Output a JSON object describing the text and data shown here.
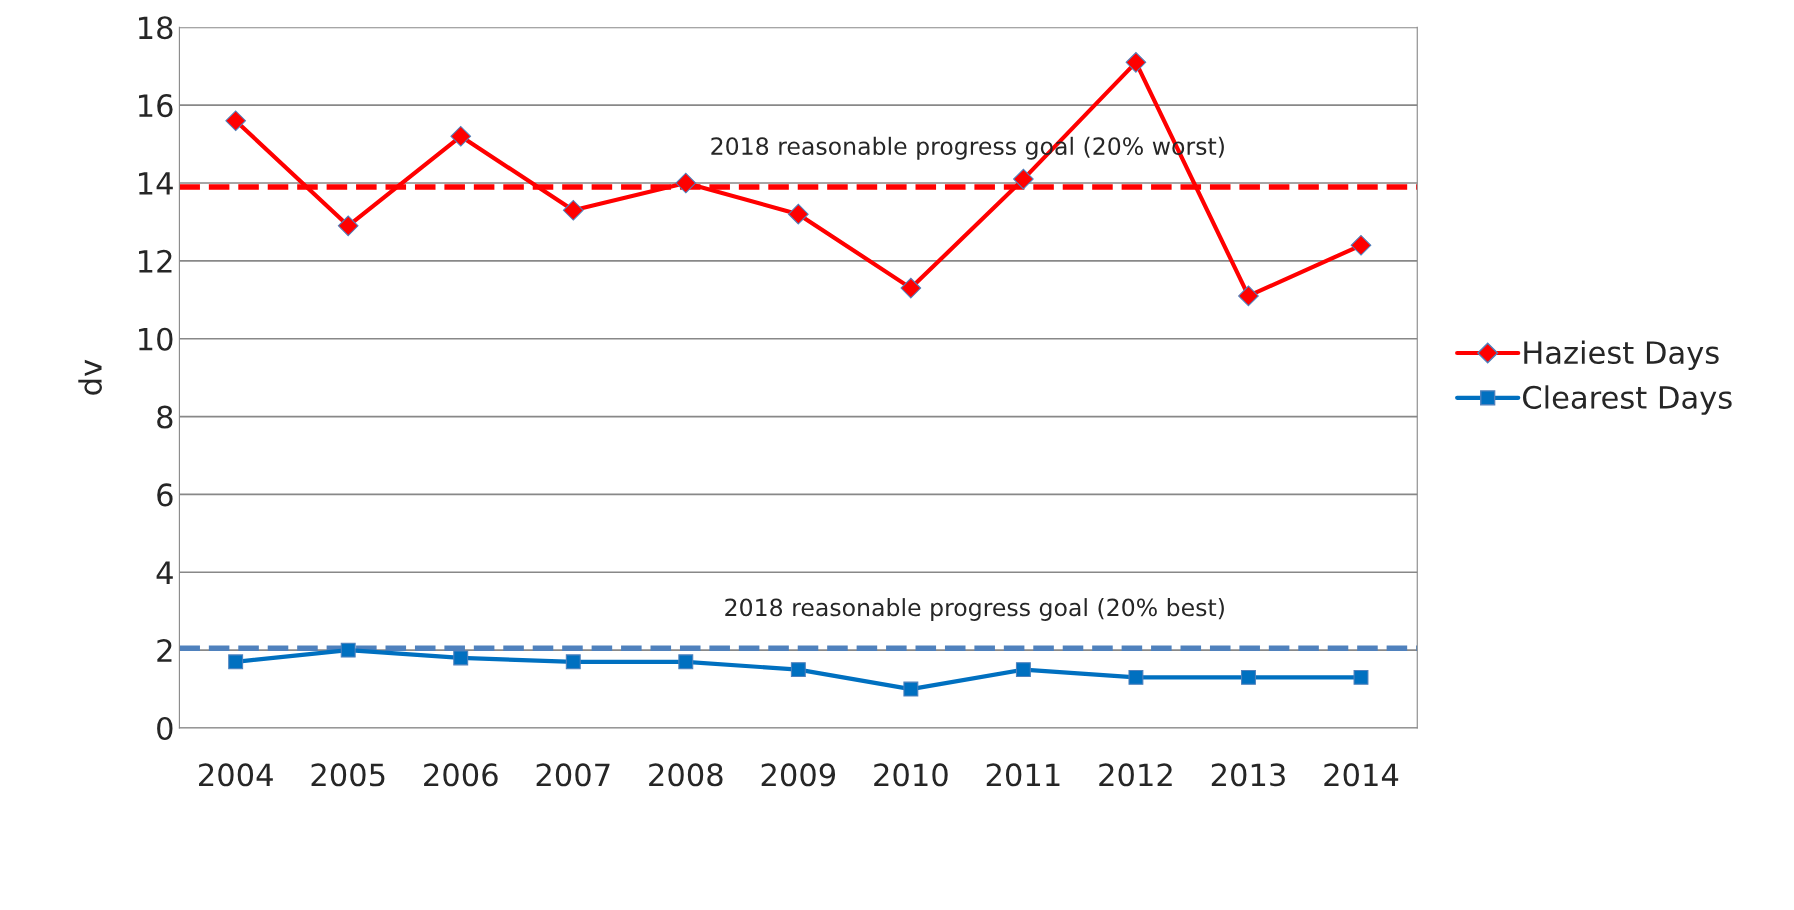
{
  "chart_data": {
    "type": "line",
    "ylabel": "dv",
    "categories": [
      "2004",
      "2005",
      "2006",
      "2007",
      "2008",
      "2009",
      "2010",
      "2011",
      "2012",
      "2013",
      "2014"
    ],
    "series": [
      {
        "name": "Haziest Days",
        "color": "#ff0000",
        "marker": "diamond",
        "values": [
          15.6,
          12.9,
          15.2,
          13.3,
          14.0,
          13.2,
          11.3,
          14.1,
          17.1,
          11.1,
          12.4
        ]
      },
      {
        "name": "Clearest Days",
        "color": "#0070c0",
        "marker": "square",
        "values": [
          1.7,
          2.0,
          1.8,
          1.7,
          1.7,
          1.5,
          1.0,
          1.5,
          1.3,
          1.3,
          1.3
        ]
      }
    ],
    "ref_lines": [
      {
        "axis": "y",
        "value": 13.9,
        "label": "2018 reasonable progress goal (20% worst)",
        "color": "#ff0000",
        "line_style": "dashed"
      },
      {
        "axis": "y",
        "value": 2.05,
        "label": "2018 reasonable progress goal (20% best)",
        "color": "#4f81bd",
        "line_style": "dashed"
      }
    ],
    "ylim": [
      0,
      18
    ],
    "yticks": [
      0,
      2,
      4,
      6,
      8,
      10,
      12,
      14,
      16,
      18
    ],
    "grid": "y",
    "legend": "right",
    "line_style": "solid"
  }
}
